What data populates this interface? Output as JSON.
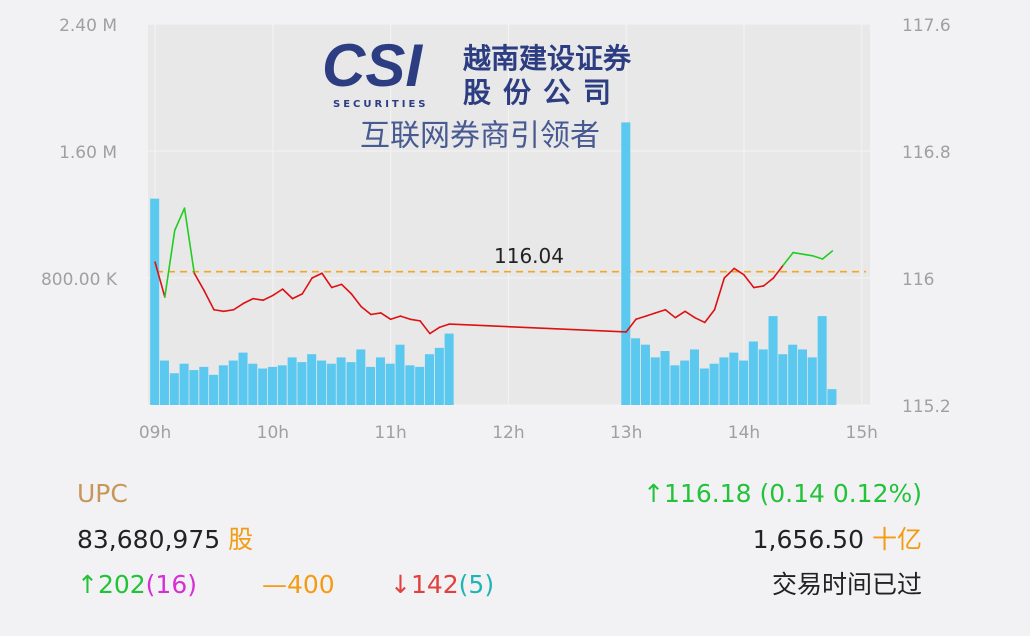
{
  "chart_data": {
    "type": "bar-line",
    "x": [
      9,
      9.083,
      9.167,
      9.25,
      9.333,
      9.417,
      9.5,
      9.583,
      9.667,
      9.75,
      9.833,
      9.917,
      10,
      10.083,
      10.167,
      10.25,
      10.333,
      10.417,
      10.5,
      10.583,
      10.667,
      10.75,
      10.833,
      10.917,
      11,
      11.083,
      11.167,
      11.25,
      11.333,
      11.417,
      11.5,
      13,
      13.083,
      13.167,
      13.25,
      13.333,
      13.417,
      13.5,
      13.583,
      13.667,
      13.75,
      13.833,
      13.917,
      14,
      14.083,
      14.167,
      14.25,
      14.333,
      14.417,
      14.5,
      14.583,
      14.667,
      14.75
    ],
    "series": [
      {
        "type": "bar",
        "color": "#5bc8f0",
        "values": [
          1300000,
          280000,
          200000,
          260000,
          220000,
          240000,
          190000,
          250000,
          280000,
          330000,
          260000,
          230000,
          240000,
          250000,
          300000,
          270000,
          320000,
          280000,
          260000,
          300000,
          270000,
          350000,
          240000,
          300000,
          260000,
          380000,
          250000,
          240000,
          320000,
          360000,
          450000,
          1780000,
          420000,
          380000,
          300000,
          340000,
          250000,
          280000,
          350000,
          230000,
          260000,
          300000,
          330000,
          280000,
          400000,
          350000,
          560000,
          320000,
          380000,
          350000,
          300000,
          560000,
          100000
        ]
      },
      {
        "type": "line",
        "axis": "y2",
        "up_color": "#22cc22",
        "down_color": "#dd1111",
        "values": [
          116.1,
          115.88,
          116.3,
          116.44,
          116.03,
          115.92,
          115.8,
          115.79,
          115.8,
          115.84,
          115.87,
          115.86,
          115.89,
          115.93,
          115.87,
          115.9,
          116.0,
          116.03,
          115.94,
          115.96,
          115.9,
          115.82,
          115.77,
          115.78,
          115.74,
          115.76,
          115.74,
          115.73,
          115.65,
          115.69,
          115.71,
          115.66,
          115.74,
          115.76,
          115.78,
          115.8,
          115.75,
          115.79,
          115.75,
          115.72,
          115.8,
          116.0,
          116.06,
          116.02,
          115.94,
          115.95,
          116.0,
          116.08,
          116.16,
          116.15,
          116.14,
          116.12,
          116.17
        ]
      }
    ],
    "xlim": [
      8.94,
      15.07
    ],
    "xticks": [
      {
        "value": 9,
        "label": "09h"
      },
      {
        "value": 10,
        "label": "10h"
      },
      {
        "value": 11,
        "label": "11h"
      },
      {
        "value": 12,
        "label": "12h"
      },
      {
        "value": 13,
        "label": "13h"
      },
      {
        "value": 14,
        "label": "14h"
      },
      {
        "value": 15,
        "label": "15h"
      }
    ],
    "ylim": [
      0,
      2400000
    ],
    "yticks": [
      {
        "value": 2400000,
        "label": "2.40 M"
      },
      {
        "value": 1600000,
        "label": "1.60 M"
      },
      {
        "value": 800000,
        "label": "800.00 K"
      }
    ],
    "y2lim": [
      115.2,
      117.6
    ],
    "y2ticks": [
      117.6,
      116.8,
      116,
      115.2
    ],
    "reference_line": 116.04,
    "reference_color": "#f5a623",
    "grid": true
  },
  "logo": {
    "mark": "CSI",
    "sub": "SECURITIES",
    "name_line1": "越南建设证券",
    "name_line2": "股份公司",
    "slogan": "互联网券商引领者"
  },
  "info": {
    "symbol": "UPC",
    "price_change": "↑116.18 (0.14 0.12%)",
    "volume": "83,680,975",
    "volume_unit": "股",
    "value": "1,656.50",
    "value_unit": "十亿",
    "advances": "↑202",
    "advances_ceiling": "(16)",
    "unchanged": "—400",
    "declines": "↓142",
    "declines_floor": "(5)",
    "status": "交易时间已过"
  }
}
